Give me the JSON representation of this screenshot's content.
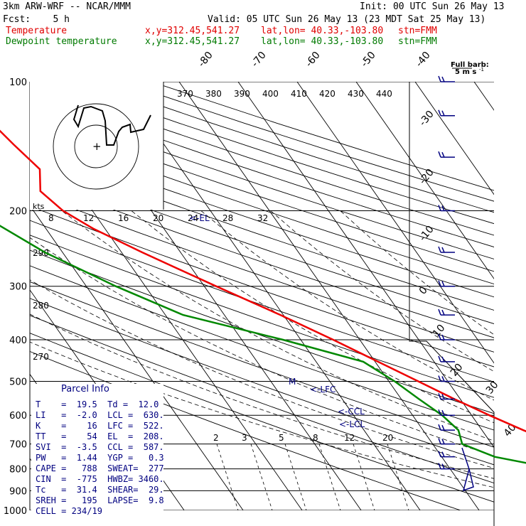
{
  "header": {
    "model": "3km ARW-WRF -- NCAR/MMM",
    "init": "Init: 00 UTC Sun 26 May 13",
    "fcst": "Fcst:    5 h",
    "valid": "Valid: 05 UTC Sun 26 May 13 (23 MDT Sat 25 May 13)",
    "temp_label": "Temperature",
    "dew_label": "Dewpoint temperature",
    "xy": "x,y=312.45,541.27",
    "latlon": "lat,lon= 40.33,-103.80",
    "stn": "stn=FMM"
  },
  "barb_legend": {
    "line1": "Full barb:",
    "line2": "5 m s",
    "unit_sup": "-1"
  },
  "colors": {
    "temperature": "#ee0000",
    "dewpoint": "#008800",
    "parcel_text": "#000080",
    "barbs": "#000080"
  },
  "chart_data": {
    "type": "line",
    "subtype": "skew-T log-p sounding",
    "pressure_levels_hPa": [
      100,
      200,
      300,
      400,
      500,
      600,
      700,
      800,
      900,
      1000
    ],
    "isotherm_labels_C": [
      "-80",
      "-70",
      "-60",
      "-50",
      "-40",
      "-30",
      "-20",
      "-10",
      "0",
      "10",
      "20",
      "30",
      "40"
    ],
    "theta_labels_K": [
      "370",
      "380",
      "390",
      "400",
      "410",
      "420",
      "430",
      "440"
    ],
    "theta_side_labels": [
      "290",
      "280",
      "270"
    ],
    "hodograph_speed_labels": [
      "8",
      "12",
      "16",
      "20",
      "24",
      "28",
      "32"
    ],
    "hodograph_unit": "kts",
    "mixing_ratio_labels": [
      "2",
      "3",
      "5",
      "8",
      "12",
      "20"
    ],
    "level_markers": [
      "<-EL",
      "<-LFC",
      "<-CCL",
      "<-LCL"
    ],
    "series": [
      {
        "name": "Temperature",
        "points": [
          {
            "p": 1000,
            "t": 19.5
          },
          {
            "p": 950,
            "t": 18.5
          },
          {
            "p": 900,
            "t": 15.5
          },
          {
            "p": 850,
            "t": 12.5
          },
          {
            "p": 800,
            "t": 9.0
          },
          {
            "p": 750,
            "t": 5.0
          },
          {
            "p": 700,
            "t": 1.0
          },
          {
            "p": 650,
            "t": -3.0
          },
          {
            "p": 600,
            "t": -7.0
          },
          {
            "p": 550,
            "t": -11.0
          },
          {
            "p": 500,
            "t": -15.0
          },
          {
            "p": 450,
            "t": -19.5
          },
          {
            "p": 400,
            "t": -24.5
          },
          {
            "p": 350,
            "t": -30.5
          },
          {
            "p": 300,
            "t": -38.0
          },
          {
            "p": 250,
            "t": -46.5
          },
          {
            "p": 220,
            "t": -52.0
          },
          {
            "p": 200,
            "t": -55.0
          },
          {
            "p": 180,
            "t": -56.5
          },
          {
            "p": 160,
            "t": -54.0
          },
          {
            "p": 140,
            "t": -55.5
          },
          {
            "p": 120,
            "t": -57.0
          },
          {
            "p": 100,
            "t": -58.5
          }
        ]
      },
      {
        "name": "Dewpoint temperature",
        "points": [
          {
            "p": 870,
            "t": 12.0
          },
          {
            "p": 850,
            "t": 9.0
          },
          {
            "p": 800,
            "t": -2.0
          },
          {
            "p": 750,
            "t": -11.0
          },
          {
            "p": 700,
            "t": -15.0
          },
          {
            "p": 650,
            "t": -14.0
          },
          {
            "p": 600,
            "t": -15.0
          },
          {
            "p": 550,
            "t": -17.0
          },
          {
            "p": 500,
            "t": -19.0
          },
          {
            "p": 450,
            "t": -22.0
          },
          {
            "p": 400,
            "t": -33.0
          },
          {
            "p": 350,
            "t": -47.0
          },
          {
            "p": 300,
            "t": -55.0
          },
          {
            "p": 250,
            "t": -63.0
          },
          {
            "p": 200,
            "t": -70.0
          },
          {
            "p": 150,
            "t": -75.0
          },
          {
            "p": 120,
            "t": -72.0
          },
          {
            "p": 100,
            "t": -75.0
          }
        ]
      }
    ],
    "wind_barbs_hPa": [
      100,
      120,
      150,
      200,
      250,
      300,
      350,
      400,
      450,
      500,
      550,
      600,
      650,
      700,
      750,
      800
    ]
  },
  "parcel_info": {
    "title": "Parcel Info",
    "rows": [
      "T    =  19.5  Td =  12.0",
      "LI   =  -2.0  LCL =  630.",
      "K    =    16  LFC =  522.",
      "TT   =    54  EL  =  208.",
      "SVI  =  -3.5  CCL =  587.",
      "PW   =  1.44  YGP =   0.3",
      "CAPE =   788  SWEAT=  277",
      "CIN  =  -775  HWBZ= 3460.",
      "Tc   =  31.4  SHEAR=  29.",
      "SREH =   195  LAPSE=  9.8",
      "CELL = 234/19"
    ]
  }
}
